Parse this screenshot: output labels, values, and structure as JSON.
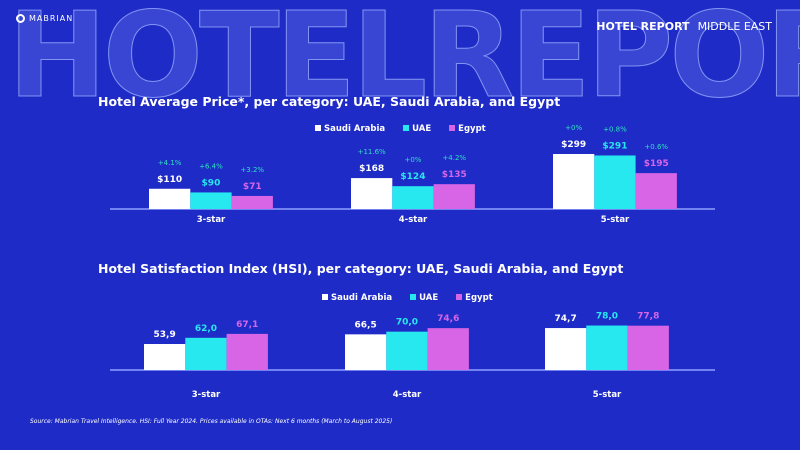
{
  "watermark": "HOTELREPORT",
  "logo": "MABRIAN",
  "header": {
    "bold": "HOTEL REPORT",
    "region": "MIDDLE EAST"
  },
  "colors": {
    "Saudi Arabia": "#ffffff",
    "UAE": "#28e8ef",
    "Egypt": "#d765e6",
    "change": "#2fe0c0",
    "background": "#1e2bc7"
  },
  "source": "Source: Mabrian Travel Intelligence. HSI: Full Year 2024. Prices  available in OTAs: Next 6 months (March to August 2025)",
  "chart_data": [
    {
      "type": "bar",
      "title": "Hotel Average Price*, per category: UAE, Saudi Arabia, and Egypt",
      "legend": "top",
      "categories": [
        "3-star",
        "4-star",
        "5-star"
      ],
      "ylim": [
        0,
        299
      ],
      "series": [
        {
          "name": "Saudi Arabia",
          "values": [
            110,
            168,
            299
          ],
          "labels": [
            "$110",
            "$168",
            "$299"
          ],
          "changes": [
            "+4.1%",
            "+11.6%",
            "+0%"
          ]
        },
        {
          "name": "UAE",
          "values": [
            90,
            124,
            291
          ],
          "labels": [
            "$90",
            "$124",
            "$291"
          ],
          "changes": [
            "+6.4%",
            "+0%",
            "+0.8%"
          ]
        },
        {
          "name": "Egypt",
          "values": [
            71,
            135,
            195
          ],
          "labels": [
            "$71",
            "$135",
            "$195"
          ],
          "changes": [
            "+3.2%",
            "+4.2%",
            "+0.6%"
          ]
        }
      ]
    },
    {
      "type": "bar",
      "title": "Hotel Satisfaction Index (HSI), per category: UAE, Saudi Arabia, and Egypt",
      "legend": "top",
      "categories": [
        "3-star",
        "4-star",
        "5-star"
      ],
      "ylim": [
        20,
        80
      ],
      "series": [
        {
          "name": "Saudi Arabia",
          "values": [
            53.9,
            66.5,
            74.7
          ],
          "labels": [
            "53,9",
            "66,5",
            "74,7"
          ]
        },
        {
          "name": "UAE",
          "values": [
            62.0,
            70.0,
            78.0
          ],
          "labels": [
            "62,0",
            "70,0",
            "78,0"
          ]
        },
        {
          "name": "Egypt",
          "values": [
            67.1,
            74.6,
            77.8
          ],
          "labels": [
            "67,1",
            "74,6",
            "77,8"
          ]
        }
      ]
    }
  ]
}
